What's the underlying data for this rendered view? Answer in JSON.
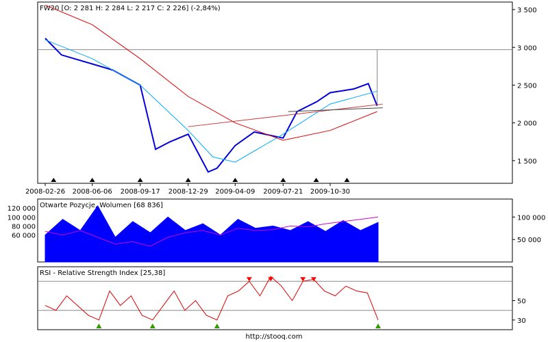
{
  "footer": "http://stooq.com",
  "chart_data": [
    {
      "type": "line",
      "title": "FW20 [O: 2 281  H: 2 284  L: 2 217  C: 2 226] (-2,84%)",
      "x_ticks": [
        "2008-02-26",
        "2008-06-06",
        "2008-09-17",
        "2008-12-29",
        "2009-04-09",
        "2009-07-21",
        "2009-10-30"
      ],
      "y_ticks": [
        "3 500",
        "3 000",
        "2 500",
        "2 000",
        "1 500"
      ],
      "ylim": [
        1200,
        3600
      ],
      "last_value": 2226,
      "reference_level": 2970,
      "series": [
        {
          "color": "#0000dd",
          "x": [
            "2008-02-26",
            "2008-04-01",
            "2008-06-06",
            "2008-07-20",
            "2008-09-17",
            "2008-10-20",
            "2008-11-20",
            "2008-12-29",
            "2009-02-10",
            "2009-03-01",
            "2009-04-09",
            "2009-05-20",
            "2009-07-21",
            "2009-08-20",
            "2009-10-01",
            "2009-10-30",
            "2009-12-20",
            "2010-01-20",
            "2010-02-08"
          ],
          "values": [
            3120,
            2900,
            2780,
            2700,
            2500,
            1650,
            1750,
            1850,
            1350,
            1400,
            1700,
            1880,
            1800,
            2150,
            2280,
            2400,
            2450,
            2520,
            2226
          ]
        },
        {
          "color": "#00aaff",
          "x": [
            "2008-02-26",
            "2008-06-06",
            "2008-09-17",
            "2008-12-29",
            "2009-02-20",
            "2009-04-09",
            "2009-07-21",
            "2009-10-30",
            "2010-02-08"
          ],
          "values": [
            3100,
            2850,
            2500,
            1900,
            1550,
            1480,
            1850,
            2250,
            2420
          ]
        },
        {
          "color": "#dd0000",
          "x": [
            "2008-02-26",
            "2008-06-06",
            "2008-09-17",
            "2008-12-29",
            "2009-04-09",
            "2009-07-21",
            "2009-10-30",
            "2010-02-08"
          ],
          "values": [
            3560,
            3300,
            2850,
            2350,
            2000,
            1770,
            1900,
            2150
          ]
        }
      ],
      "triangle_markers": [
        "2008-03-15",
        "2008-06-06",
        "2008-09-17",
        "2008-12-29",
        "2009-04-09",
        "2009-07-21",
        "2009-09-30",
        "2009-12-05"
      ]
    },
    {
      "type": "area",
      "title": "Otwarte Pozycje, Wolumen [68 836]",
      "y_ticks_left": [
        "120 000",
        "100 000",
        "80 000",
        "60 000"
      ],
      "y_ticks_right": [
        "100 000",
        "50 000"
      ],
      "ylim": [
        0,
        140000
      ],
      "series": [
        {
          "color": "#0000ff",
          "values": [
            60000,
            95000,
            70000,
            125000,
            55000,
            90000,
            65000,
            100000,
            70000,
            85000,
            60000,
            95000,
            75000,
            80000,
            70000,
            90000,
            68000,
            92000,
            70000,
            88000
          ]
        },
        {
          "color": "#cc00cc",
          "values": [
            68000,
            60000,
            70000,
            55000,
            40000,
            45000,
            35000,
            55000,
            65000,
            70000,
            60000,
            75000,
            70000,
            72000,
            80000,
            78000,
            85000,
            90000,
            95000,
            100000
          ]
        }
      ]
    },
    {
      "type": "line",
      "title": "RSI - Relative Strength Index [25,38]",
      "y_ticks": [
        "50",
        "30"
      ],
      "ylim": [
        20,
        85
      ],
      "levels": [
        70,
        40
      ],
      "series": [
        {
          "color": "#dd0000",
          "values": [
            45,
            40,
            55,
            45,
            35,
            30,
            60,
            45,
            55,
            35,
            30,
            45,
            60,
            40,
            50,
            35,
            30,
            55,
            60,
            70,
            55,
            75,
            65,
            50,
            70,
            72,
            60,
            55,
            65,
            60,
            58,
            30
          ]
        }
      ]
    }
  ]
}
